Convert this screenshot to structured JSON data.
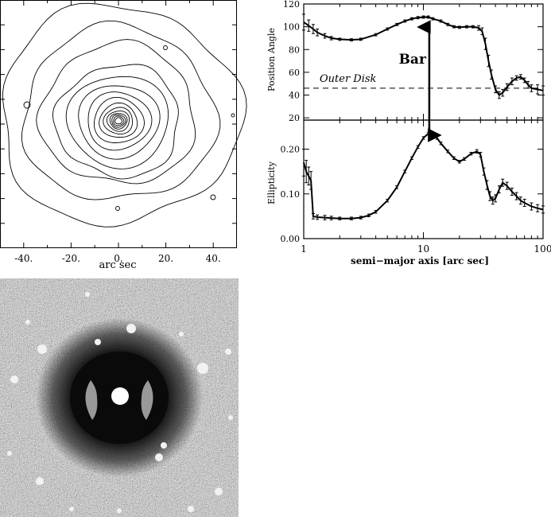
{
  "contour_panel": {
    "x_tick_labels": [
      "-40.",
      "-20.",
      "0.",
      "20.",
      "40."
    ],
    "x_tick_values": [
      -40,
      -20,
      0,
      20,
      40
    ],
    "x_range": [
      -50,
      50
    ],
    "xlabel": "arc sec"
  },
  "image_panel": {
    "description_colors": {
      "background": "#808080",
      "halo": "#1a1a1a",
      "core": "#ffffff"
    }
  },
  "profile_panel": {
    "xlabel": "semi−major axis [arc sec]",
    "x_tick_labels": [
      "1",
      "10",
      "100"
    ],
    "x_tick_values": [
      1,
      10,
      100
    ],
    "x_scale": "log",
    "x_range": [
      1,
      100
    ],
    "bar_label": "Bar",
    "outer_disk_label": "Outer Disk",
    "outer_disk_pa": 46
  },
  "chart_data": [
    {
      "type": "line",
      "panel": "position-angle",
      "ylabel": "Position Angle",
      "y_tick_labels": [
        "20",
        "40",
        "60",
        "80",
        "100",
        "120"
      ],
      "y_tick_values": [
        20,
        40,
        60,
        80,
        100,
        120
      ],
      "ylim": [
        18,
        120
      ],
      "x_scale": "log",
      "series": [
        {
          "x": [
            1.0,
            1.1,
            1.2,
            1.3,
            1.5,
            1.7,
            2.0,
            2.5,
            3.0,
            4.0,
            5.0,
            6.0,
            7.0,
            8.0,
            9.0,
            10.0,
            11.0,
            12.0,
            14.0,
            16.0,
            18.0,
            20.0,
            23.0,
            26.0,
            29.0,
            31.0,
            33.0,
            35.0,
            37.0,
            40.0,
            43.0,
            46.0,
            50.0,
            55.0,
            60.0,
            65.0,
            70.0,
            75.0,
            80.0,
            90.0,
            100.0
          ],
          "y": [
            104,
            101,
            98,
            95,
            92,
            90,
            89,
            88.5,
            89,
            93,
            98,
            102,
            105,
            107,
            108,
            108.5,
            108.5,
            107,
            105,
            102,
            100,
            99.5,
            100,
            100,
            99,
            96,
            85,
            70,
            58,
            45,
            40,
            42,
            47,
            52,
            55,
            56,
            53,
            49,
            46,
            45,
            44
          ],
          "err": [
            7,
            5,
            4,
            3,
            2,
            1.5,
            1,
            1,
            1,
            1,
            1,
            1,
            1,
            1,
            1,
            1,
            1,
            1,
            1,
            1,
            1,
            1,
            1,
            1,
            2,
            3,
            5,
            5,
            4,
            3,
            3,
            3,
            3,
            3,
            2,
            2,
            2,
            3,
            3,
            4,
            4
          ]
        }
      ],
      "reference_line": {
        "y": 46,
        "style": "dashed",
        "label": "Outer Disk"
      }
    },
    {
      "type": "line",
      "panel": "ellipticity",
      "ylabel": "Ellipticity",
      "y_tick_labels": [
        "0.00",
        "0.10",
        "0.20"
      ],
      "y_tick_values": [
        0.0,
        0.1,
        0.2
      ],
      "ylim": [
        0,
        0.265
      ],
      "x_scale": "log",
      "series": [
        {
          "x": [
            1.0,
            1.05,
            1.1,
            1.15,
            1.2,
            1.3,
            1.5,
            1.7,
            2.0,
            2.5,
            3.0,
            3.5,
            4.0,
            5.0,
            6.0,
            7.0,
            8.0,
            9.0,
            10.0,
            11.0,
            12.0,
            13.0,
            14.0,
            16.0,
            18.0,
            20.0,
            22.0,
            25.0,
            28.0,
            30.0,
            32.0,
            34.0,
            36.0,
            38.0,
            40.0,
            43.0,
            46.0,
            50.0,
            55.0,
            60.0,
            65.0,
            70.0,
            80.0,
            90.0,
            100.0
          ],
          "y": [
            0.17,
            0.15,
            0.14,
            0.13,
            0.05,
            0.048,
            0.047,
            0.046,
            0.045,
            0.045,
            0.047,
            0.052,
            0.06,
            0.085,
            0.115,
            0.15,
            0.18,
            0.205,
            0.225,
            0.235,
            0.233,
            0.225,
            0.213,
            0.195,
            0.18,
            0.172,
            0.178,
            0.19,
            0.195,
            0.188,
            0.15,
            0.12,
            0.095,
            0.085,
            0.09,
            0.11,
            0.125,
            0.118,
            0.105,
            0.095,
            0.085,
            0.08,
            0.072,
            0.068,
            0.065
          ],
          "err": [
            0.03,
            0.025,
            0.02,
            0.02,
            0.006,
            0.005,
            0.005,
            0.004,
            0.003,
            0.003,
            0.003,
            0.003,
            0.003,
            0.003,
            0.003,
            0.003,
            0.003,
            0.003,
            0.003,
            0.003,
            0.003,
            0.003,
            0.003,
            0.003,
            0.003,
            0.003,
            0.003,
            0.003,
            0.004,
            0.005,
            0.008,
            0.01,
            0.01,
            0.008,
            0.008,
            0.008,
            0.008,
            0.008,
            0.008,
            0.008,
            0.008,
            0.008,
            0.008,
            0.008,
            0.008
          ]
        }
      ]
    }
  ]
}
